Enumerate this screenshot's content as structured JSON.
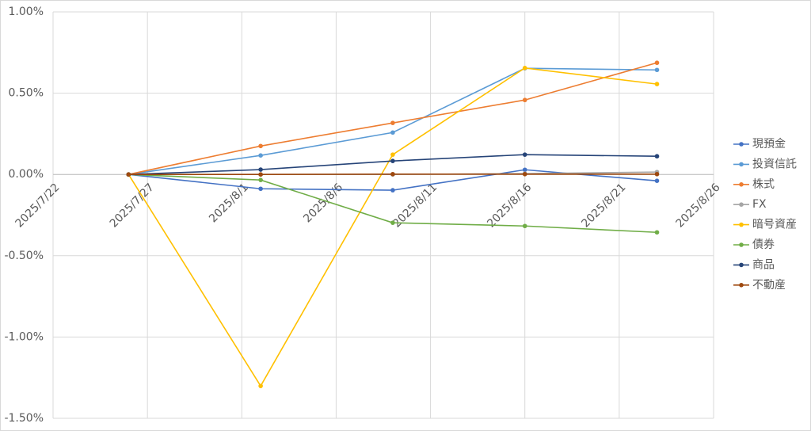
{
  "chart_data": {
    "type": "line",
    "x": [
      "2025/7/26",
      "2025/8/2",
      "2025/8/9",
      "2025/8/16",
      "2025/8/23"
    ],
    "xlim": [
      "2025/7/22",
      "2025/8/26"
    ],
    "xticks": [
      "2025/7/22",
      "2025/7/27",
      "2025/8/1",
      "2025/8/6",
      "2025/8/11",
      "2025/8/16",
      "2025/8/21",
      "2025/8/26"
    ],
    "ylim": [
      -1.5,
      1.0
    ],
    "yticks": [
      {
        "value": -1.5,
        "label": "-1.50%"
      },
      {
        "value": -1.0,
        "label": "-1.00%"
      },
      {
        "value": -0.5,
        "label": "-0.50%"
      },
      {
        "value": 0,
        "label": "0.00%"
      },
      {
        "value": 0.5,
        "label": "0.50%"
      },
      {
        "value": 1.0,
        "label": "1.00%"
      }
    ],
    "grid": true,
    "legend": "right",
    "series": [
      {
        "name": "現預金",
        "color": "#4472c4",
        "values": [
          0,
          -0.088,
          -0.097,
          0.029,
          -0.039
        ]
      },
      {
        "name": "投資信託",
        "color": "#5b9bd5",
        "values": [
          0,
          0.117,
          0.258,
          0.653,
          0.643
        ]
      },
      {
        "name": "株式",
        "color": "#ed7d31",
        "values": [
          0,
          0.175,
          0.317,
          0.458,
          0.687
        ]
      },
      {
        "name": "FX",
        "color": "#a5a5a5",
        "values": [
          0,
          0,
          0,
          0.005,
          0.015
        ]
      },
      {
        "name": "暗号資産",
        "color": "#ffc000",
        "values": [
          0,
          -1.301,
          0.122,
          0.655,
          0.556
        ]
      },
      {
        "name": "債券",
        "color": "#70ad47",
        "values": [
          0,
          -0.034,
          -0.297,
          -0.317,
          -0.356
        ]
      },
      {
        "name": "商品",
        "color": "#264478",
        "values": [
          0,
          0.03,
          0.083,
          0.122,
          0.112
        ]
      },
      {
        "name": "不動産",
        "color": "#9e480e",
        "values": [
          0,
          0,
          0.002,
          0.002,
          0.002
        ]
      }
    ]
  }
}
